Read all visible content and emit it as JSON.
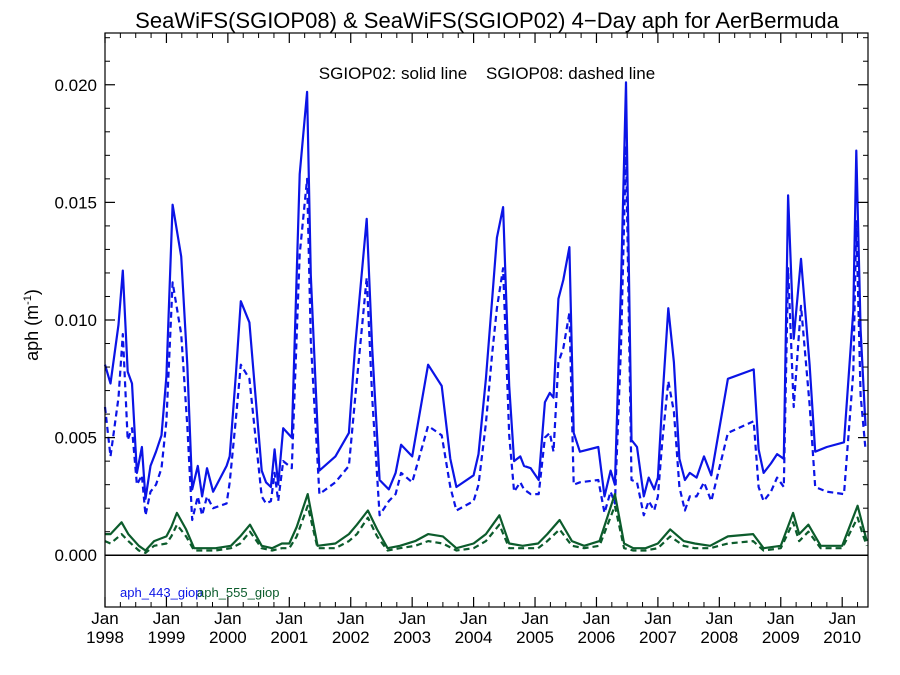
{
  "chart_data": {
    "type": "line",
    "title": "SeaWiFS(SGIOP08) & SeaWiFS(SGIOP02) 4−Day aph for AerBermuda",
    "annotation": "SGIOP02: solid line    SGIOP08: dashed line",
    "ylabel": "aph (m",
    "ylabel_sup": "-1",
    "ylabel_close": ")",
    "ylim": [
      -0.0022,
      0.0222
    ],
    "xlim": [
      1998.0,
      2010.42
    ],
    "yticks": [
      0.0,
      0.005,
      0.01,
      0.015,
      0.02
    ],
    "ytick_labels": [
      "0.000",
      "0.005",
      "0.010",
      "0.015",
      "0.020"
    ],
    "xtick_years": [
      1998,
      1999,
      2000,
      2001,
      2002,
      2003,
      2004,
      2005,
      2006,
      2007,
      2008,
      2009,
      2010
    ],
    "xtick_month_label": "Jan",
    "xtick_year_labels": [
      "1998",
      "1999",
      "2000",
      "2001",
      "2002",
      "2003",
      "2004",
      "2005",
      "2006",
      "2007",
      "2008",
      "2009",
      "2010"
    ],
    "zero_line": true,
    "colors": {
      "aph_443": "#0b14e6",
      "aph_555": "#0c5c2c",
      "axes": "#000000"
    },
    "legend": {
      "placement": "bottom-left",
      "entries": [
        "aph_443_giop",
        "aph_555_giop"
      ]
    },
    "series": [
      {
        "name": "aph_443_giop",
        "style": "solid",
        "color": "#0b14e6",
        "x": [
          1998.0,
          1998.09,
          1998.22,
          1998.29,
          1998.37,
          1998.44,
          1998.52,
          1998.6,
          1998.66,
          1998.74,
          1998.83,
          1998.92,
          1999.0,
          1999.1,
          1999.24,
          1999.34,
          1999.42,
          1999.51,
          1999.58,
          1999.66,
          1999.76,
          1999.98,
          2000.03,
          2000.13,
          2000.21,
          2000.35,
          2000.55,
          2000.62,
          2000.7,
          2000.76,
          2000.82,
          2000.9,
          2001.04,
          2001.17,
          2001.29,
          2001.35,
          2001.49,
          2001.75,
          2001.97,
          2002.07,
          2002.26,
          2002.35,
          2002.47,
          2002.62,
          2002.73,
          2002.82,
          2003.0,
          2003.26,
          2003.48,
          2003.62,
          2003.72,
          2004.0,
          2004.08,
          2004.2,
          2004.3,
          2004.38,
          2004.48,
          2004.58,
          2004.66,
          2004.76,
          2004.82,
          2004.93,
          2005.06,
          2005.16,
          2005.24,
          2005.3,
          2005.38,
          2005.46,
          2005.56,
          2005.63,
          2005.73,
          2006.03,
          2006.13,
          2006.23,
          2006.3,
          2006.4,
          2006.48,
          2006.57,
          2006.66,
          2006.77,
          2006.85,
          2006.94,
          2007.0,
          2007.07,
          2007.17,
          2007.26,
          2007.35,
          2007.44,
          2007.52,
          2007.63,
          2007.75,
          2007.87,
          2008.14,
          2008.56,
          2008.64,
          2008.72,
          2008.84,
          2008.94,
          2009.05,
          2009.12,
          2009.21,
          2009.33,
          2009.47,
          2009.56,
          2009.75,
          2010.03,
          2010.18,
          2010.23,
          2010.3,
          2010.38
        ],
        "values": [
          0.0081,
          0.0073,
          0.0098,
          0.0121,
          0.0078,
          0.0073,
          0.0035,
          0.0046,
          0.0024,
          0.0038,
          0.0044,
          0.0051,
          0.0076,
          0.0149,
          0.0127,
          0.0081,
          0.0028,
          0.0038,
          0.0025,
          0.0037,
          0.0027,
          0.0038,
          0.0042,
          0.0077,
          0.0108,
          0.0099,
          0.0036,
          0.0031,
          0.0029,
          0.0045,
          0.003,
          0.0054,
          0.005,
          0.0162,
          0.0197,
          0.0119,
          0.0036,
          0.0042,
          0.0052,
          0.0088,
          0.0143,
          0.0088,
          0.0032,
          0.0028,
          0.0035,
          0.0047,
          0.0042,
          0.0081,
          0.0072,
          0.0041,
          0.0029,
          0.0034,
          0.0043,
          0.0075,
          0.0108,
          0.0135,
          0.0148,
          0.0072,
          0.004,
          0.0042,
          0.0038,
          0.0037,
          0.0032,
          0.0065,
          0.0069,
          0.0067,
          0.0109,
          0.0117,
          0.0131,
          0.0052,
          0.0044,
          0.0046,
          0.0025,
          0.0036,
          0.003,
          0.0115,
          0.0201,
          0.0049,
          0.0046,
          0.0025,
          0.0033,
          0.0028,
          0.0033,
          0.0065,
          0.0105,
          0.0082,
          0.0041,
          0.0032,
          0.0035,
          0.0033,
          0.0042,
          0.0034,
          0.0075,
          0.0079,
          0.0045,
          0.0035,
          0.0039,
          0.0043,
          0.0041,
          0.0153,
          0.0092,
          0.0126,
          0.0081,
          0.0044,
          0.0046,
          0.0048,
          0.0104,
          0.0172,
          0.0096,
          0.0055
        ]
      },
      {
        "name": "aph_443_giop",
        "style": "dashed",
        "color": "#0b14e6",
        "x": [
          1998.0,
          1998.09,
          1998.22,
          1998.29,
          1998.37,
          1998.44,
          1998.52,
          1998.6,
          1998.66,
          1998.74,
          1998.83,
          1998.92,
          1999.0,
          1999.1,
          1999.24,
          1999.34,
          1999.42,
          1999.51,
          1999.58,
          1999.66,
          1999.76,
          1999.98,
          2000.03,
          2000.13,
          2000.21,
          2000.35,
          2000.55,
          2000.62,
          2000.7,
          2000.76,
          2000.82,
          2000.9,
          2001.04,
          2001.17,
          2001.29,
          2001.35,
          2001.49,
          2001.75,
          2001.97,
          2002.07,
          2002.26,
          2002.35,
          2002.47,
          2002.62,
          2002.73,
          2002.82,
          2003.0,
          2003.26,
          2003.48,
          2003.62,
          2003.72,
          2004.0,
          2004.08,
          2004.2,
          2004.3,
          2004.38,
          2004.48,
          2004.58,
          2004.66,
          2004.76,
          2004.82,
          2004.93,
          2005.06,
          2005.16,
          2005.24,
          2005.3,
          2005.38,
          2005.46,
          2005.56,
          2005.63,
          2005.73,
          2006.03,
          2006.13,
          2006.23,
          2006.3,
          2006.4,
          2006.48,
          2006.57,
          2006.66,
          2006.77,
          2006.85,
          2006.94,
          2007.0,
          2007.07,
          2007.17,
          2007.26,
          2007.35,
          2007.44,
          2007.52,
          2007.63,
          2007.75,
          2007.87,
          2008.14,
          2008.56,
          2008.64,
          2008.72,
          2008.84,
          2008.94,
          2009.05,
          2009.12,
          2009.21,
          2009.33,
          2009.47,
          2009.56,
          2009.75,
          2010.03,
          2010.18,
          2010.23,
          2010.3,
          2010.38
        ],
        "values": [
          0.0063,
          0.0042,
          0.0067,
          0.0094,
          0.0049,
          0.0054,
          0.003,
          0.0034,
          0.0017,
          0.0027,
          0.003,
          0.0037,
          0.0057,
          0.0116,
          0.0094,
          0.0055,
          0.0015,
          0.0025,
          0.0017,
          0.0025,
          0.002,
          0.0022,
          0.0031,
          0.0058,
          0.0081,
          0.0075,
          0.0025,
          0.0022,
          0.0023,
          0.0035,
          0.0023,
          0.004,
          0.0037,
          0.0128,
          0.016,
          0.0091,
          0.0026,
          0.0031,
          0.0038,
          0.0066,
          0.0118,
          0.0067,
          0.0017,
          0.0023,
          0.0026,
          0.0035,
          0.0031,
          0.0055,
          0.0051,
          0.0029,
          0.0019,
          0.0023,
          0.003,
          0.0056,
          0.0085,
          0.0105,
          0.0122,
          0.0051,
          0.0027,
          0.0031,
          0.0028,
          0.0026,
          0.0026,
          0.005,
          0.0052,
          0.0044,
          0.0082,
          0.0088,
          0.0103,
          0.003,
          0.0031,
          0.0032,
          0.0018,
          0.0027,
          0.0022,
          0.0089,
          0.0174,
          0.0032,
          0.0031,
          0.0017,
          0.0023,
          0.0019,
          0.0025,
          0.0048,
          0.0074,
          0.0061,
          0.0029,
          0.0019,
          0.0025,
          0.0025,
          0.0031,
          0.0023,
          0.0052,
          0.0057,
          0.0029,
          0.0023,
          0.0027,
          0.0033,
          0.0029,
          0.0122,
          0.0063,
          0.0106,
          0.0064,
          0.0029,
          0.0027,
          0.0026,
          0.0078,
          0.0142,
          0.0068,
          0.0045
        ]
      },
      {
        "name": "aph_555_giop",
        "style": "solid",
        "color": "#0c5c2c",
        "x": [
          1998.0,
          1998.09,
          1998.27,
          1998.38,
          1998.55,
          1998.66,
          1998.8,
          1999.0,
          1999.08,
          1999.17,
          1999.32,
          1999.45,
          1999.6,
          1999.8,
          2000.05,
          2000.2,
          2000.36,
          2000.55,
          2000.72,
          2000.88,
          2001.0,
          2001.12,
          2001.3,
          2001.46,
          2001.75,
          2001.97,
          2002.1,
          2002.28,
          2002.43,
          2002.6,
          2002.8,
          2003.05,
          2003.26,
          2003.5,
          2003.72,
          2004.0,
          2004.2,
          2004.42,
          2004.58,
          2004.8,
          2005.05,
          2005.2,
          2005.4,
          2005.6,
          2005.8,
          2006.05,
          2006.3,
          2006.45,
          2006.6,
          2006.8,
          2007.0,
          2007.2,
          2007.42,
          2007.6,
          2007.85,
          2008.14,
          2008.55,
          2008.72,
          2009.0,
          2009.2,
          2009.3,
          2009.45,
          2009.65,
          2010.0,
          2010.25,
          2010.32,
          2010.4
        ],
        "values": [
          0.0009,
          0.0009,
          0.0014,
          0.0009,
          0.0004,
          0.0002,
          0.0006,
          0.0008,
          0.0012,
          0.0018,
          0.0011,
          0.0003,
          0.0003,
          0.0003,
          0.0004,
          0.0008,
          0.0013,
          0.0004,
          0.0003,
          0.0005,
          0.0005,
          0.0012,
          0.0026,
          0.0004,
          0.0005,
          0.0009,
          0.0013,
          0.0019,
          0.0011,
          0.0003,
          0.0004,
          0.0006,
          0.0009,
          0.0008,
          0.0003,
          0.0005,
          0.0009,
          0.0017,
          0.0005,
          0.0004,
          0.0005,
          0.0009,
          0.0015,
          0.0006,
          0.0004,
          0.0006,
          0.0026,
          0.0005,
          0.0003,
          0.0003,
          0.0005,
          0.0011,
          0.0006,
          0.0005,
          0.0004,
          0.0008,
          0.0009,
          0.0003,
          0.0004,
          0.0018,
          0.0009,
          0.0013,
          0.0004,
          0.0004,
          0.0021,
          0.0014,
          0.0006
        ]
      },
      {
        "name": "aph_555_giop",
        "style": "dashed",
        "color": "#0c5c2c",
        "x": [
          1998.0,
          1998.09,
          1998.27,
          1998.38,
          1998.55,
          1998.66,
          1998.8,
          1999.0,
          1999.08,
          1999.17,
          1999.32,
          1999.45,
          1999.6,
          1999.8,
          2000.05,
          2000.2,
          2000.36,
          2000.55,
          2000.72,
          2000.88,
          2001.0,
          2001.12,
          2001.3,
          2001.46,
          2001.75,
          2001.97,
          2002.1,
          2002.28,
          2002.43,
          2002.6,
          2002.8,
          2003.05,
          2003.26,
          2003.5,
          2003.72,
          2004.0,
          2004.2,
          2004.42,
          2004.58,
          2004.8,
          2005.05,
          2005.2,
          2005.4,
          2005.6,
          2005.8,
          2006.05,
          2006.3,
          2006.45,
          2006.6,
          2006.8,
          2007.0,
          2007.2,
          2007.42,
          2007.6,
          2007.85,
          2008.14,
          2008.55,
          2008.72,
          2009.0,
          2009.2,
          2009.3,
          2009.45,
          2009.65,
          2010.0,
          2010.25,
          2010.32,
          2010.4
        ],
        "values": [
          0.0006,
          0.0005,
          0.0009,
          0.0006,
          0.0002,
          0.0001,
          0.0004,
          0.0005,
          0.0008,
          0.0013,
          0.0008,
          0.0002,
          0.0002,
          0.0002,
          0.0003,
          0.0005,
          0.001,
          0.0003,
          0.0002,
          0.0003,
          0.0003,
          0.0008,
          0.0021,
          0.0003,
          0.0003,
          0.0006,
          0.0009,
          0.0016,
          0.0008,
          0.0002,
          0.0003,
          0.0004,
          0.0006,
          0.0005,
          0.0002,
          0.0003,
          0.0006,
          0.0013,
          0.0003,
          0.0003,
          0.0003,
          0.0006,
          0.0011,
          0.0004,
          0.0003,
          0.0004,
          0.0021,
          0.0003,
          0.0002,
          0.0002,
          0.0003,
          0.0008,
          0.0004,
          0.0003,
          0.0003,
          0.0005,
          0.0006,
          0.0002,
          0.0003,
          0.0014,
          0.0006,
          0.001,
          0.0003,
          0.0003,
          0.0016,
          0.001,
          0.0004
        ]
      }
    ]
  }
}
